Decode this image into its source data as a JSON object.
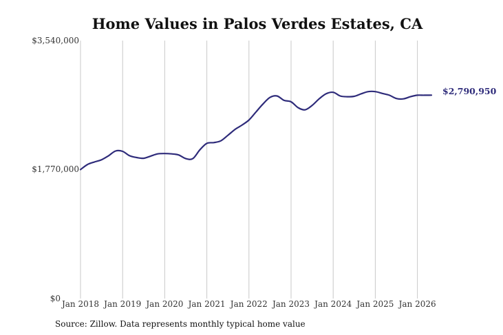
{
  "chart_data": {
    "type": "line",
    "title": "Home Values in Palos Verdes Estates, CA",
    "xlabel": "",
    "ylabel": "",
    "x_tick_labels": [
      "Jan 2018",
      "Jan 2019",
      "Jan 2020",
      "Jan 2021",
      "Jan 2022",
      "Jan 2023",
      "Jan 2024",
      "Jan 2025",
      "Jan 2026"
    ],
    "y_tick_labels": [
      "$0",
      "$1,770,000",
      "$3,540,000"
    ],
    "ylim": [
      0,
      3540000
    ],
    "xlim": [
      "2018-01",
      "2026-06"
    ],
    "grid": "vertical",
    "line_color": "#2e2b7a",
    "end_label": "$2,790,950",
    "series": [
      {
        "x": [
          "2018-01",
          "2018-03",
          "2018-05",
          "2018-07",
          "2018-09",
          "2018-11",
          "2019-01",
          "2019-03",
          "2019-05",
          "2019-07",
          "2019-09",
          "2019-11",
          "2020-01",
          "2020-03",
          "2020-05",
          "2020-07",
          "2020-09",
          "2020-11",
          "2021-01",
          "2021-03",
          "2021-05",
          "2021-07",
          "2021-09",
          "2021-11",
          "2022-01",
          "2022-03",
          "2022-05",
          "2022-07",
          "2022-09",
          "2022-11",
          "2023-01",
          "2023-03",
          "2023-05",
          "2023-07",
          "2023-09",
          "2023-11",
          "2024-01",
          "2024-03",
          "2024-05",
          "2024-07",
          "2024-09",
          "2024-11",
          "2025-01",
          "2025-03",
          "2025-05",
          "2025-07",
          "2025-09",
          "2025-11",
          "2026-01",
          "2026-03",
          "2026-05"
        ],
        "values": [
          1770000,
          1840000,
          1875000,
          1905000,
          1960000,
          2025000,
          2020000,
          1960000,
          1935000,
          1925000,
          1955000,
          1985000,
          1990000,
          1985000,
          1970000,
          1920000,
          1920000,
          2040000,
          2130000,
          2140000,
          2165000,
          2240000,
          2320000,
          2380000,
          2450000,
          2560000,
          2670000,
          2760000,
          2780000,
          2720000,
          2700000,
          2620000,
          2590000,
          2650000,
          2740000,
          2810000,
          2830000,
          2780000,
          2770000,
          2775000,
          2810000,
          2840000,
          2840000,
          2815000,
          2790000,
          2745000,
          2740000,
          2770000,
          2790000,
          2790000,
          2790950
        ]
      }
    ]
  }
}
